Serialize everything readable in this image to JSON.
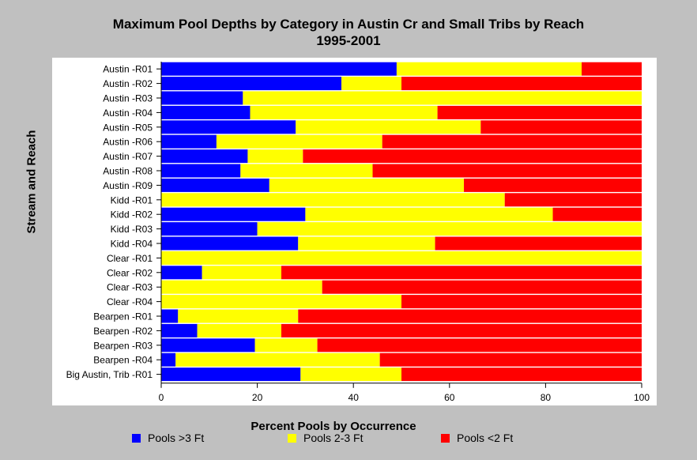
{
  "chart_data": {
    "type": "bar",
    "orientation": "horizontal",
    "stacked": true,
    "title": "Maximum Pool Depths by Category in Austin Cr and Small Tribs by Reach",
    "subtitle": "1995-2001",
    "xlabel": "Percent Pools by Occurrence",
    "ylabel": "Stream and Reach",
    "xlim": [
      0,
      100
    ],
    "xticks": [
      "0",
      "20",
      "40",
      "60",
      "80",
      "100"
    ],
    "grid": false,
    "legend_position": "bottom",
    "categories": [
      "Austin -R01",
      "Austin -R02",
      "Austin -R03",
      "Austin -R04",
      "Austin -R05",
      "Austin -R06",
      "Austin -R07",
      "Austin -R08",
      "Austin -R09",
      "Kidd -R01",
      "Kidd -R02",
      "Kidd -R03",
      "Kidd -R04",
      "Clear -R01",
      "Clear -R02",
      "Clear -R03",
      "Clear -R04",
      "Bearpen -R01",
      "Bearpen -R02",
      "Bearpen -R03",
      "Bearpen -R04",
      "Big Austin, Trib -R01"
    ],
    "series": [
      {
        "name": "Pools >3 Ft",
        "color": "#0000ff",
        "values": [
          49,
          37.5,
          17,
          18.5,
          28,
          11.5,
          18,
          16.5,
          22.5,
          0,
          30,
          20,
          28.5,
          0,
          8.5,
          0,
          0,
          3.5,
          7.5,
          19.5,
          3,
          29
        ]
      },
      {
        "name": "Pools 2-3 Ft",
        "color": "#ffff00",
        "values": [
          38.5,
          12.5,
          83,
          39,
          38.5,
          34.5,
          11.5,
          27.5,
          40.5,
          71.5,
          51.5,
          80,
          28.5,
          100,
          16.5,
          33.5,
          50,
          25,
          17.5,
          13,
          42.5,
          21
        ]
      },
      {
        "name": "Pools <2 Ft",
        "color": "#ff0000",
        "values": [
          12.5,
          50,
          0,
          42.5,
          33.5,
          54,
          70.5,
          56,
          37,
          28.5,
          18.5,
          0,
          43,
          0,
          75,
          66.5,
          50,
          71.5,
          75,
          67.5,
          54.5,
          50
        ]
      }
    ]
  }
}
